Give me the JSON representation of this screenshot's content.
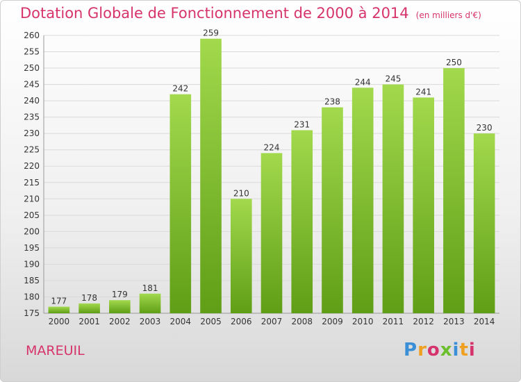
{
  "header": {
    "title": "Dotation Globale de Fonctionnement de 2000 à 2014",
    "unit": "(en milliers d'€)"
  },
  "footer": {
    "town": "MAREUIL",
    "logo": "Proxiti"
  },
  "colors": {
    "title": "#d6336c",
    "bar_light": "#a2d94d",
    "bar_dark": "#5f9e16",
    "grid": "#d9d9d9"
  },
  "chart_data": {
    "type": "bar",
    "title": "Dotation Globale de Fonctionnement de 2000 à 2014",
    "subtitle": "(en milliers d'€)",
    "categories": [
      "2000",
      "2001",
      "2002",
      "2003",
      "2004",
      "2005",
      "2006",
      "2007",
      "2008",
      "2009",
      "2010",
      "2011",
      "2012",
      "2013",
      "2014"
    ],
    "values": [
      177,
      178,
      179,
      181,
      242,
      259,
      210,
      224,
      231,
      238,
      244,
      245,
      241,
      250,
      230
    ],
    "ylim": [
      175,
      260
    ],
    "yticks": [
      175,
      180,
      185,
      190,
      195,
      200,
      205,
      210,
      215,
      220,
      225,
      230,
      235,
      240,
      245,
      250,
      255,
      260
    ],
    "grid": true,
    "legend": "none"
  }
}
